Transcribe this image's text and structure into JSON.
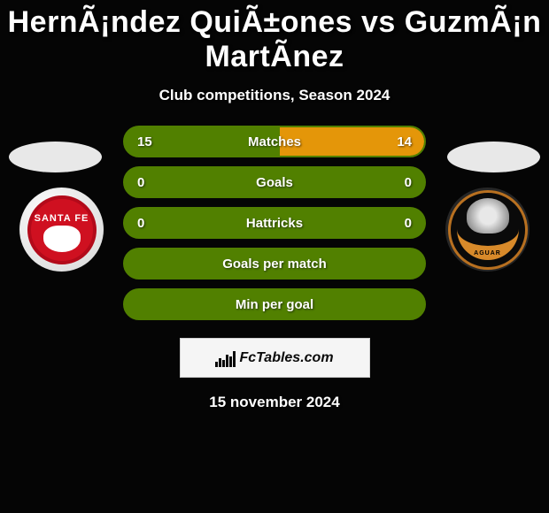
{
  "title": "HernÃ¡ndez QuiÃ±ones vs GuzmÃ¡n MartÃ­nez",
  "subtitle": "Club competitions, Season 2024",
  "date": "15 november 2024",
  "fctables_label": "FcTables.com",
  "player_left": {
    "oval_color": "#e8e8e8",
    "badge_text": "SANTA FE"
  },
  "player_right": {
    "oval_color": "#e8e8e8",
    "badge_text": "AGUAR"
  },
  "colors": {
    "left_bar": "#518000",
    "right_bar": "#e49609",
    "empty_bar": "#518000"
  },
  "stats": [
    {
      "label": "Matches",
      "left_value": "15",
      "right_value": "14",
      "left_pct": 51.7,
      "right_pct": 48.3,
      "has_split": true
    },
    {
      "label": "Goals",
      "left_value": "0",
      "right_value": "0",
      "left_pct": 0,
      "right_pct": 0,
      "has_split": false
    },
    {
      "label": "Hattricks",
      "left_value": "0",
      "right_value": "0",
      "left_pct": 0,
      "right_pct": 0,
      "has_split": false
    },
    {
      "label": "Goals per match",
      "left_value": "",
      "right_value": "",
      "left_pct": 0,
      "right_pct": 0,
      "has_split": false
    },
    {
      "label": "Min per goal",
      "left_value": "",
      "right_value": "",
      "left_pct": 0,
      "right_pct": 0,
      "has_split": false
    }
  ]
}
